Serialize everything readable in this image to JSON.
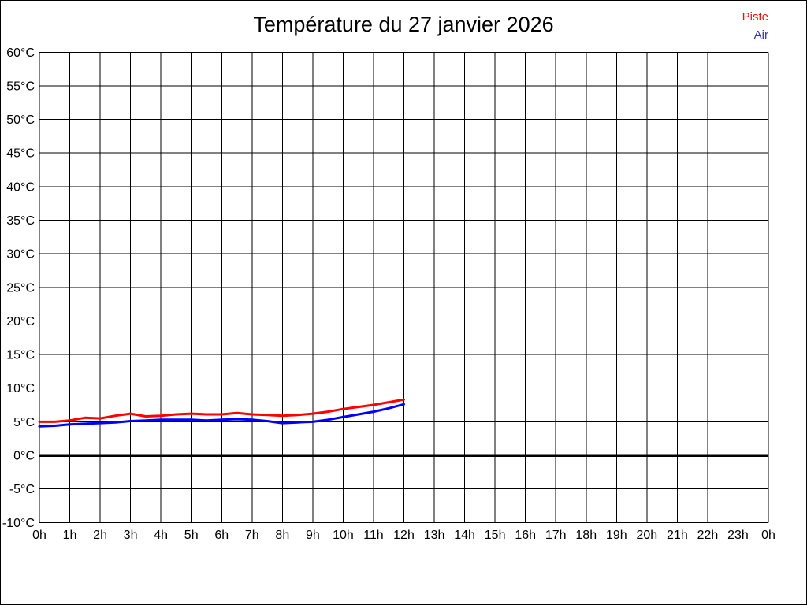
{
  "page": {
    "background": "#ffffff",
    "border_color": "#000000"
  },
  "header": {
    "title": "Température du 27 janvier 2026"
  },
  "legend": {
    "position": "top-right",
    "items": [
      {
        "label": "Piste",
        "color": "#ee1111"
      },
      {
        "label": "Air",
        "color": "#3333cc"
      }
    ]
  },
  "chart_data": {
    "type": "line",
    "title": "Température du 27 janvier 2026",
    "xlabel": "",
    "ylabel": "",
    "xlim": [
      0,
      24
    ],
    "ylim": [
      -10,
      60
    ],
    "x_tick_step_hours": 1,
    "y_tick_step_deg": 5,
    "grid": true,
    "grid_color": "#000000",
    "zero_line_bold": true,
    "zero_line_color": "#000000",
    "legend_position": "top-right",
    "x_tick_labels": [
      "0h",
      "1h",
      "2h",
      "3h",
      "4h",
      "5h",
      "6h",
      "7h",
      "8h",
      "9h",
      "10h",
      "11h",
      "12h",
      "13h",
      "14h",
      "15h",
      "16h",
      "17h",
      "18h",
      "19h",
      "20h",
      "21h",
      "22h",
      "23h",
      "0h"
    ],
    "y_tick_labels": [
      "60°C",
      "55°C",
      "50°C",
      "45°C",
      "40°C",
      "35°C",
      "30°C",
      "25°C",
      "20°C",
      "15°C",
      "10°C",
      "5°C",
      "0°C",
      "-5°C",
      "-10°C"
    ],
    "y_tick_values": [
      60,
      55,
      50,
      45,
      40,
      35,
      30,
      25,
      20,
      15,
      10,
      5,
      0,
      -5,
      -10
    ],
    "x": [
      0,
      0.5,
      1,
      1.5,
      2,
      2.5,
      3,
      3.5,
      4,
      4.5,
      5,
      5.5,
      6,
      6.5,
      7,
      7.5,
      8,
      8.5,
      9,
      9.5,
      10,
      10.5,
      11,
      11.5,
      12
    ],
    "series": [
      {
        "name": "Piste",
        "color": "#ff0000",
        "values": [
          5.0,
          5.0,
          5.2,
          5.6,
          5.5,
          5.9,
          6.2,
          5.8,
          5.9,
          6.1,
          6.2,
          6.1,
          6.1,
          6.3,
          6.1,
          6.0,
          5.9,
          6.0,
          6.2,
          6.5,
          6.9,
          7.2,
          7.5,
          7.9,
          8.3
        ]
      },
      {
        "name": "Air",
        "color": "#0000ff",
        "values": [
          4.3,
          4.4,
          4.6,
          4.7,
          4.8,
          4.9,
          5.1,
          5.2,
          5.3,
          5.3,
          5.3,
          5.2,
          5.3,
          5.4,
          5.3,
          5.1,
          4.8,
          4.9,
          5.0,
          5.3,
          5.7,
          6.1,
          6.5,
          7.0,
          7.6
        ]
      }
    ]
  }
}
